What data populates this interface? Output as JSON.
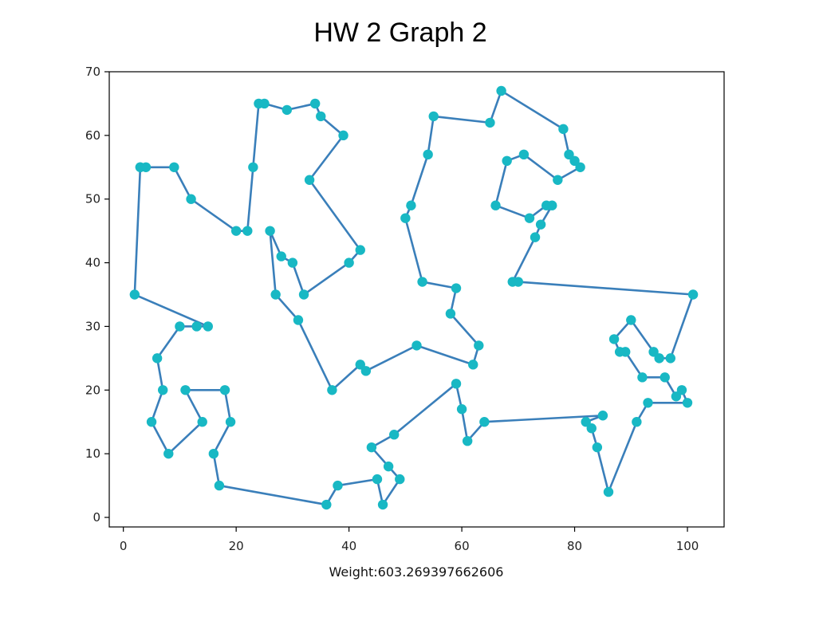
{
  "colors": {
    "line": "#3a7fba",
    "marker": "#18b8c4",
    "axes": "#000000"
  },
  "chart_data": {
    "type": "line",
    "title": "HW 2 Graph 2",
    "xlabel": "Weight:603.269397662606",
    "ylabel": "",
    "xlim": [
      -2.5,
      106.5
    ],
    "ylim": [
      -1.5,
      70
    ],
    "xticks": [
      0,
      20,
      40,
      60,
      80,
      100
    ],
    "yticks": [
      0,
      10,
      20,
      30,
      40,
      50,
      60,
      70
    ],
    "grid": false,
    "series": [
      {
        "marker": "circle",
        "points": [
          [
            3,
            55
          ],
          [
            9,
            55
          ],
          [
            12,
            50
          ],
          [
            20,
            45
          ],
          [
            22,
            45
          ],
          [
            23,
            55
          ],
          [
            24,
            65
          ],
          [
            25,
            65
          ],
          [
            29,
            64
          ],
          [
            34,
            65
          ],
          [
            35,
            63
          ],
          [
            39,
            60
          ],
          [
            33,
            53
          ],
          [
            42,
            42
          ],
          [
            40,
            40
          ],
          [
            32,
            35
          ],
          [
            30,
            40
          ],
          [
            28,
            41
          ],
          [
            26,
            45
          ],
          [
            27,
            35
          ],
          [
            31,
            31
          ],
          [
            37,
            20
          ],
          [
            42,
            24
          ],
          [
            43,
            23
          ],
          [
            52,
            27
          ],
          [
            62,
            24
          ],
          [
            63,
            27
          ],
          [
            58,
            32
          ],
          [
            59,
            36
          ],
          [
            53,
            37
          ],
          [
            50,
            47
          ],
          [
            51,
            49
          ],
          [
            54,
            57
          ],
          [
            55,
            63
          ],
          [
            65,
            62
          ],
          [
            67,
            67
          ],
          [
            78,
            61
          ],
          [
            79,
            57
          ],
          [
            80,
            56
          ],
          [
            81,
            55
          ],
          [
            77,
            53
          ],
          [
            71,
            57
          ],
          [
            68,
            56
          ],
          [
            66,
            49
          ],
          [
            72,
            47
          ],
          [
            75,
            49
          ],
          [
            76,
            49
          ],
          [
            74,
            46
          ],
          [
            73,
            44
          ],
          [
            69,
            37
          ],
          [
            70,
            37
          ],
          [
            101,
            35
          ],
          [
            97,
            25
          ],
          [
            95,
            25
          ],
          [
            94,
            26
          ],
          [
            90,
            31
          ],
          [
            87,
            28
          ],
          [
            88,
            26
          ],
          [
            89,
            26
          ],
          [
            92,
            22
          ],
          [
            96,
            22
          ],
          [
            98,
            19
          ],
          [
            99,
            20
          ],
          [
            100,
            18
          ],
          [
            93,
            18
          ],
          [
            91,
            15
          ],
          [
            86,
            4
          ],
          [
            84,
            11
          ],
          [
            83,
            14
          ],
          [
            82,
            15
          ],
          [
            85,
            16
          ],
          [
            64,
            15
          ],
          [
            61,
            12
          ],
          [
            60,
            17
          ],
          [
            59,
            21
          ],
          [
            48,
            13
          ],
          [
            44,
            11
          ],
          [
            47,
            8
          ],
          [
            49,
            6
          ],
          [
            46,
            2
          ],
          [
            45,
            6
          ],
          [
            38,
            5
          ],
          [
            36,
            2
          ],
          [
            17,
            5
          ],
          [
            16,
            10
          ],
          [
            19,
            15
          ],
          [
            18,
            20
          ],
          [
            11,
            20
          ],
          [
            14,
            15
          ],
          [
            8,
            10
          ],
          [
            5,
            15
          ],
          [
            7,
            20
          ],
          [
            6,
            25
          ],
          [
            10,
            30
          ],
          [
            13,
            30
          ],
          [
            15,
            30
          ],
          [
            2,
            35
          ],
          [
            3,
            55
          ],
          [
            4,
            55
          ]
        ]
      }
    ]
  }
}
